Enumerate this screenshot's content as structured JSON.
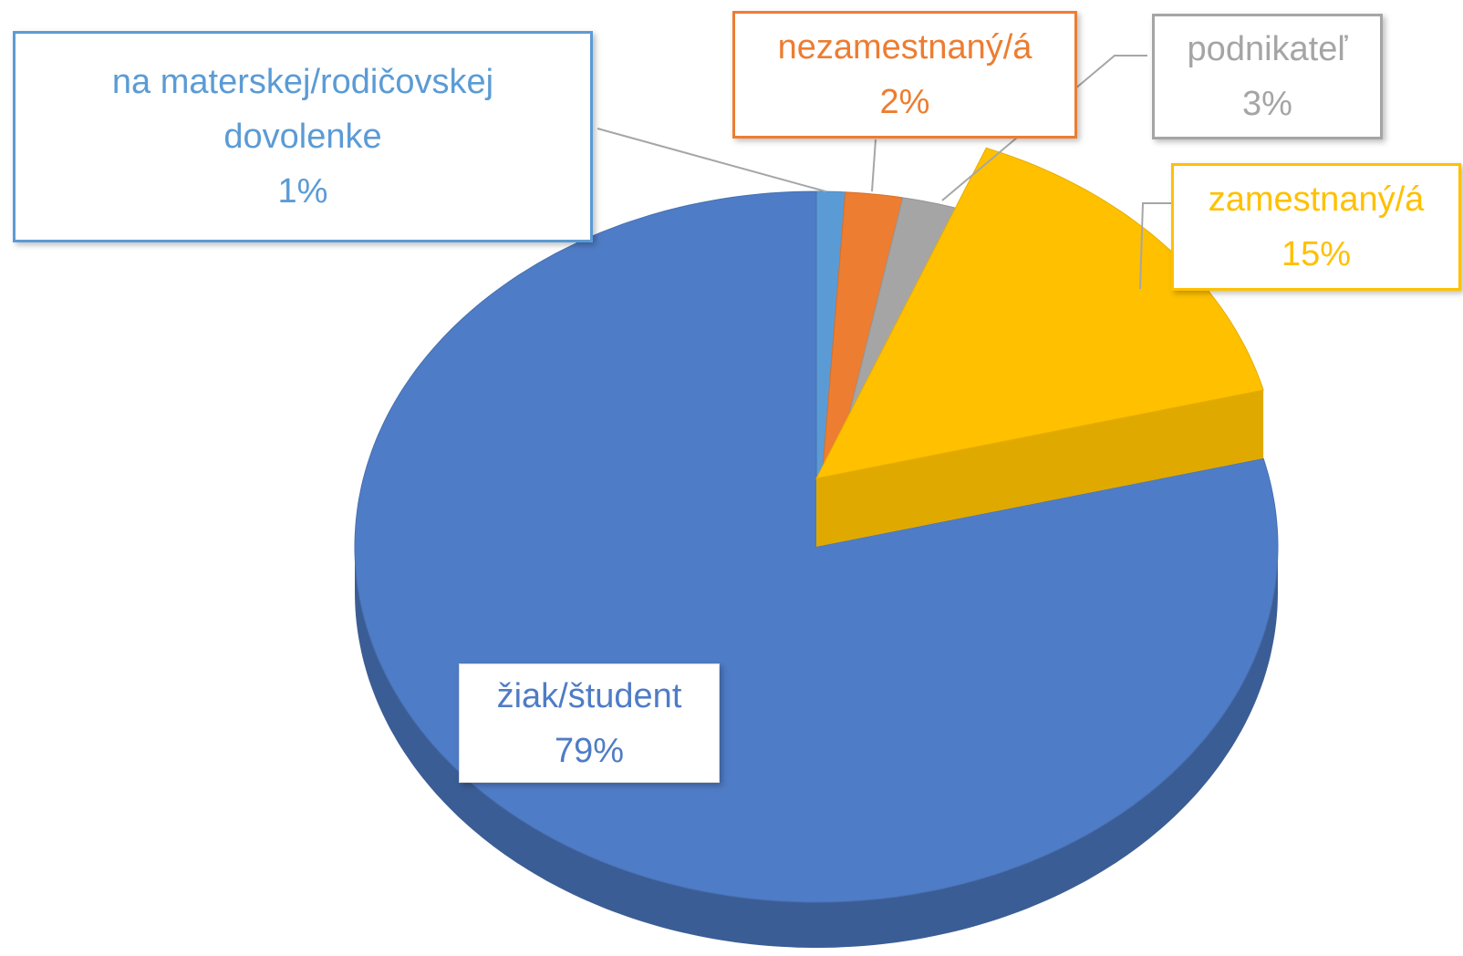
{
  "chart_data": {
    "type": "pie3d",
    "categories": [
      "na materskej/rodičovskej dovolenke",
      "nezamestnaný/á",
      "podnikateľ",
      "zamestnaný/á",
      "žiak/študent"
    ],
    "values": [
      1,
      2,
      3,
      15,
      79
    ],
    "value_labels": [
      "1%",
      "2%",
      "3%",
      "15%",
      "79%"
    ],
    "colors": [
      "#5b9bd5",
      "#ed7d31",
      "#a5a5a5",
      "#ffc000",
      "#4f7cc6"
    ],
    "exploded": [
      false,
      false,
      false,
      true,
      false
    ]
  }
}
